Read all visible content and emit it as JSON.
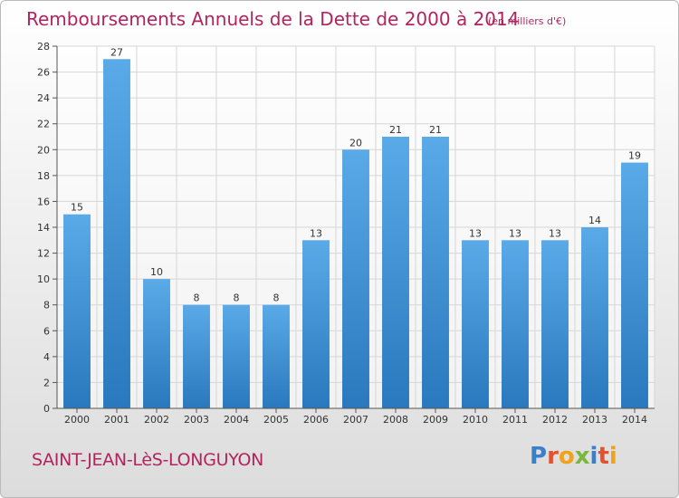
{
  "header": {
    "title": "Remboursements Annuels de la Dette de 2000 à 2014",
    "subtitle": "(en milliers d'€)"
  },
  "footer": {
    "commune": "SAINT-JEAN-LèS-LONGUYON",
    "logo": "Proxiti"
  },
  "colors": {
    "title": "#b3245e",
    "bar_top": "#5aaae8",
    "bar_bottom": "#2a78bd",
    "grid": "#d6d6d6"
  },
  "chart_data": {
    "type": "bar",
    "title": "Remboursements Annuels de la Dette de 2000 à 2014",
    "subtitle": "(en milliers d'€)",
    "categories": [
      "2000",
      "2001",
      "2002",
      "2003",
      "2004",
      "2005",
      "2006",
      "2007",
      "2008",
      "2009",
      "2010",
      "2011",
      "2012",
      "2013",
      "2014"
    ],
    "values": [
      15,
      27,
      10,
      8,
      8,
      8,
      13,
      20,
      21,
      21,
      13,
      13,
      13,
      14,
      19
    ],
    "ylim": [
      0,
      28
    ],
    "yticks": [
      0,
      2,
      4,
      6,
      8,
      10,
      12,
      14,
      16,
      18,
      20,
      22,
      24,
      26,
      28
    ],
    "grid": true,
    "data_labels": true
  }
}
